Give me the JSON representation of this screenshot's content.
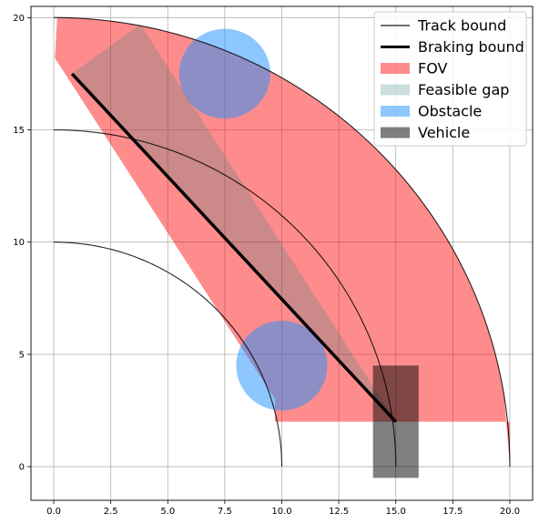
{
  "chart_data": {
    "type": "area",
    "title": "",
    "xlabel": "",
    "ylabel": "",
    "xlim": [
      -1.0,
      21.0
    ],
    "ylim": [
      -1.5,
      20.5
    ],
    "grid": true,
    "legend_position": "top-right",
    "x_ticks": [
      "0.0",
      "2.5",
      "5.0",
      "7.5",
      "10.0",
      "12.5",
      "15.0",
      "17.5",
      "20.0"
    ],
    "y_ticks": [
      "0",
      "5",
      "10",
      "15",
      "20"
    ],
    "x_tick_values": [
      0,
      2.5,
      5,
      7.5,
      10,
      12.5,
      15,
      17.5,
      20
    ],
    "y_tick_values": [
      0,
      5,
      10,
      15,
      20
    ],
    "legend": [
      {
        "label": "Track bound",
        "kind": "line",
        "color": "#000000",
        "width": 1.5,
        "opacity": 0.75
      },
      {
        "label": "Braking bound",
        "kind": "line",
        "color": "#000000",
        "width": 3
      },
      {
        "label": "FOV",
        "kind": "patch",
        "color": "#ff0000",
        "opacity": 0.45
      },
      {
        "label": "Feasible gap",
        "kind": "patch",
        "color": "#2f7f7f",
        "opacity": 0.25
      },
      {
        "label": "Obstacle",
        "kind": "patch",
        "color": "#1e90ff",
        "opacity": 0.5
      },
      {
        "label": "Vehicle",
        "kind": "patch",
        "color": "#000000",
        "opacity": 0.5
      }
    ],
    "series": {
      "track_bounds": [
        {
          "center": [
            0,
            0
          ],
          "radius": 10,
          "start_deg": 0,
          "end_deg": 90
        },
        {
          "center": [
            0,
            0
          ],
          "radius": 15,
          "start_deg": 0,
          "end_deg": 90
        },
        {
          "center": [
            0,
            0
          ],
          "radius": 20,
          "start_deg": 0,
          "end_deg": 90
        }
      ],
      "fov_polygon": [
        [
          15,
          2
        ],
        [
          9.7,
          2
        ],
        [
          9.7,
          3.0
        ],
        [
          0.05,
          18.2
        ],
        [
          0.15,
          20.0
        ]
      ],
      "fov_arc": {
        "center": [
          0,
          0
        ],
        "radius": 20,
        "from_x": 0.15,
        "to_x": 20.0
      },
      "fov_close": [
        [
          20.0,
          2
        ],
        [
          15,
          2
        ]
      ],
      "feasible_gap": [
        [
          15,
          2
        ],
        [
          0.8,
          17.5
        ],
        [
          3.8,
          19.7
        ]
      ],
      "braking_bound": [
        [
          15,
          2
        ],
        [
          0.8,
          17.5
        ]
      ],
      "obstacles": [
        {
          "center": [
            7.5,
            17.5
          ],
          "radius": 2
        },
        {
          "center": [
            10,
            4.5
          ],
          "radius": 2
        }
      ],
      "vehicle": {
        "x": [
          14,
          16
        ],
        "y": [
          -0.5,
          4.5
        ]
      },
      "vehicle_position": [
        15,
        2
      ]
    }
  }
}
